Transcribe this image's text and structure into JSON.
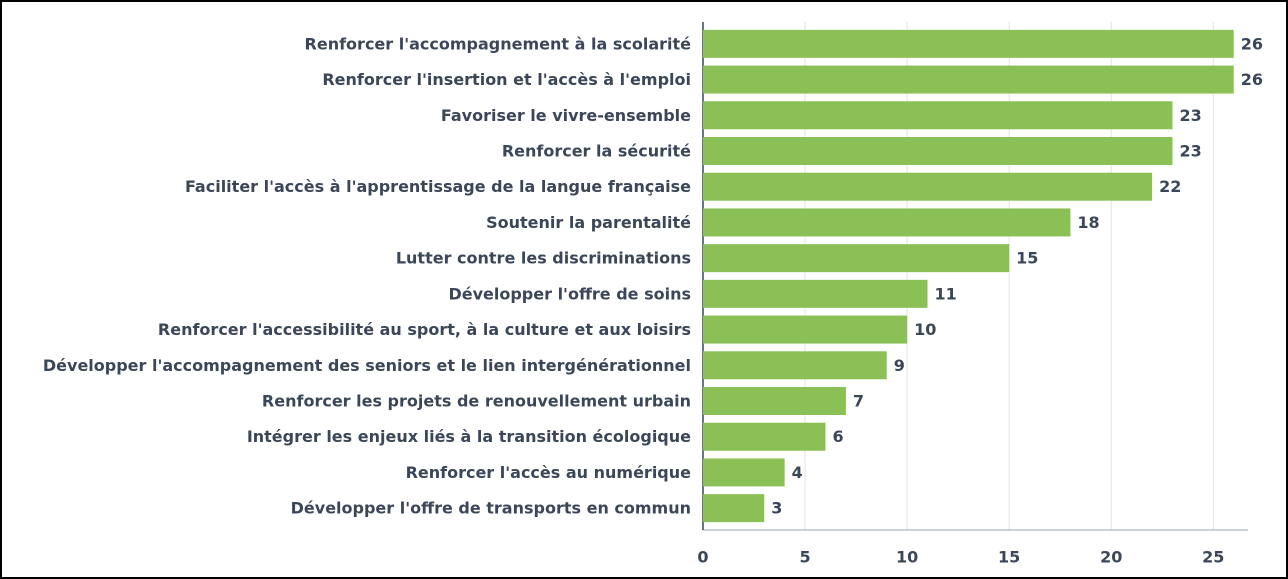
{
  "chart_data": {
    "type": "bar",
    "orientation": "horizontal",
    "categories": [
      "Renforcer l'accompagnement à la scolarité",
      "Renforcer l'insertion et l'accès à l'emploi",
      "Favoriser le vivre-ensemble",
      "Renforcer la sécurité",
      "Faciliter l'accès à l'apprentissage de la langue française",
      "Soutenir la parentalité",
      "Lutter contre les discriminations",
      "Développer l'offre de soins",
      "Renforcer l'accessibilité au sport, à la culture et aux loisirs",
      "Développer l'accompagnement des seniors et le lien intergénérationnel",
      "Renforcer les projets de renouvellement urbain",
      "Intégrer les enjeux liés à la transition écologique",
      "Renforcer l'accès au numérique",
      "Développer l'offre de transports en commun"
    ],
    "values": [
      26,
      26,
      23,
      23,
      22,
      18,
      15,
      11,
      10,
      9,
      7,
      6,
      4,
      3
    ],
    "color": "#8bc057",
    "xlim": [
      0,
      26.7
    ],
    "xticks": [
      0,
      5,
      10,
      15,
      20,
      25
    ],
    "grid": true
  }
}
